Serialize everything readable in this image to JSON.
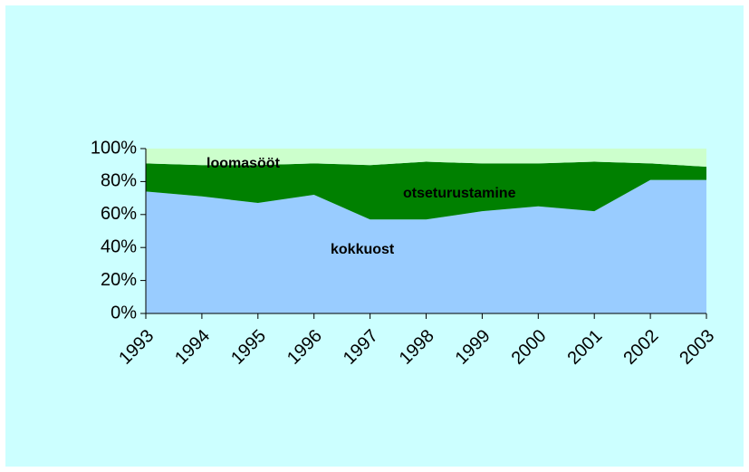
{
  "chart_data": {
    "type": "stacked_area_percent",
    "categories": [
      "1993",
      "1994",
      "1995",
      "1996",
      "1997",
      "1998",
      "1999",
      "2000",
      "2001",
      "2002",
      "2003"
    ],
    "series": [
      {
        "name": "kokkuost",
        "color": "#99ccff",
        "values": [
          74,
          71,
          67,
          72,
          57,
          57,
          62,
          65,
          62,
          81,
          81
        ]
      },
      {
        "name": "otseturustamine",
        "color": "#008000",
        "values": [
          17,
          19,
          23,
          19,
          33,
          35,
          29,
          26,
          30,
          10,
          8
        ]
      },
      {
        "name": "loomasööt",
        "color": "#ccffcc",
        "values": [
          9,
          10,
          10,
          9,
          10,
          8,
          9,
          9,
          8,
          9,
          11
        ]
      }
    ],
    "ylim": [
      0,
      100
    ],
    "yticks": [
      {
        "value": 0,
        "label": "0%"
      },
      {
        "value": 20,
        "label": "20%"
      },
      {
        "value": 40,
        "label": "40%"
      },
      {
        "value": 60,
        "label": "60%"
      },
      {
        "value": 80,
        "label": "80%"
      },
      {
        "value": 100,
        "label": "100%"
      }
    ]
  }
}
